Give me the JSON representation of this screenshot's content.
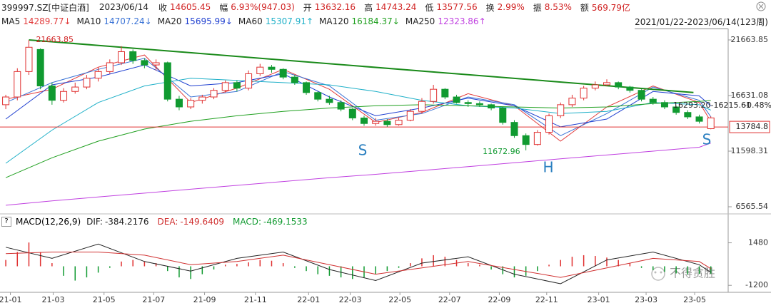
{
  "chart_data": {
    "type": "candlestick",
    "symbol": "399997.SZ[中证白酒]",
    "date": "2023/06/14",
    "quote": [
      {
        "label": "收",
        "value": 14605.45
      },
      {
        "label": "幅",
        "value": "6.93%(947.03)"
      },
      {
        "label": "开",
        "value": 13632.16
      },
      {
        "label": "高",
        "value": 14743.24
      },
      {
        "label": "低",
        "value": 13577.56
      },
      {
        "label": "换",
        "value": "2.99%"
      },
      {
        "label": "振",
        "value": "8.53%"
      },
      {
        "label": "额",
        "value": "569.79亿"
      }
    ],
    "range": "2021/01/22-2023/06/14(123周)",
    "open": [
      15800,
      16500,
      18800,
      20800,
      17500,
      16200,
      17000,
      17400,
      18200,
      18800,
      19600,
      20600,
      19800,
      19400,
      19600,
      16300,
      15600,
      16200,
      16500,
      17100,
      17800,
      17300,
      18600,
      19200,
      19000,
      18300,
      17800,
      16900,
      16300,
      16000,
      15400,
      14600,
      14100,
      14300,
      14000,
      14400,
      15200,
      16100,
      17200,
      16500,
      16000,
      15900,
      15800,
      15500,
      14200,
      13000,
      12200,
      13300,
      14800,
      15800,
      16400,
      17300,
      17600,
      17800,
      17400,
      17100,
      16300,
      16000,
      15600,
      15100,
      14700,
      13632.16
    ],
    "high": [
      16700,
      19100,
      21663.85,
      20900,
      17800,
      17300,
      17800,
      18500,
      19200,
      19900,
      21100,
      20800,
      20000,
      19900,
      19700,
      16600,
      16400,
      16700,
      17300,
      18000,
      18000,
      18900,
      19500,
      19400,
      19100,
      18500,
      17900,
      17000,
      16600,
      16200,
      15500,
      14800,
      14600,
      14500,
      14600,
      15400,
      16400,
      17600,
      17300,
      16700,
      16200,
      16100,
      15900,
      15600,
      14400,
      13200,
      13500,
      15000,
      16000,
      16700,
      17500,
      17900,
      18100,
      17900,
      17500,
      17200,
      16500,
      16200,
      15700,
      15300,
      14900,
      14743.24
    ],
    "low": [
      15400,
      16200,
      18500,
      17200,
      15800,
      16000,
      16800,
      17200,
      17900,
      18600,
      19400,
      19500,
      19100,
      18900,
      16100,
      15300,
      15400,
      15900,
      16300,
      16900,
      17000,
      17100,
      18400,
      18700,
      18100,
      17600,
      16700,
      16100,
      15800,
      15200,
      14400,
      13900,
      13900,
      13800,
      13900,
      14300,
      15000,
      15900,
      16300,
      15900,
      15600,
      15600,
      15300,
      14000,
      12800,
      11672.96,
      12100,
      13100,
      14600,
      15600,
      16200,
      17100,
      17500,
      17200,
      16900,
      16100,
      15800,
      15400,
      14900,
      14500,
      14100,
      13577.56
    ],
    "close": [
      16500,
      18800,
      21000,
      17500,
      16200,
      17000,
      17400,
      18200,
      18800,
      19600,
      20600,
      19800,
      19400,
      19600,
      16300,
      15600,
      16200,
      16500,
      17100,
      17800,
      17300,
      18600,
      19200,
      19000,
      18300,
      17800,
      16900,
      16300,
      16000,
      15400,
      14600,
      14100,
      14300,
      14000,
      14400,
      15200,
      16100,
      17200,
      16500,
      16000,
      15900,
      15800,
      15500,
      14200,
      13000,
      12200,
      13300,
      14800,
      15800,
      16400,
      17300,
      17600,
      17800,
      17400,
      17100,
      16300,
      16000,
      15600,
      15100,
      14700,
      14300,
      14605.45
    ],
    "up_color": "#e03030",
    "down_color": "#109a30",
    "xlim": [
      -0.5,
      62.5
    ],
    "xticks": [
      {
        "value": 0.4,
        "label": "21-01"
      },
      {
        "value": 4.1,
        "label": "21-03"
      },
      {
        "value": 8.5,
        "label": "21-05"
      },
      {
        "value": 12.8,
        "label": "21-07"
      },
      {
        "value": 17.2,
        "label": "21-09"
      },
      {
        "value": 21.6,
        "label": "21-11"
      },
      {
        "value": 26.2,
        "label": "22-01"
      },
      {
        "value": 29.8,
        "label": "22-03"
      },
      {
        "value": 34.1,
        "label": "22-05"
      },
      {
        "value": 38.4,
        "label": "22-07"
      },
      {
        "value": 42.7,
        "label": "22-09"
      },
      {
        "value": 46.8,
        "label": "22-11"
      },
      {
        "value": 51.3,
        "label": "23-01"
      },
      {
        "value": 55.4,
        "label": "23-03"
      },
      {
        "value": 59.6,
        "label": "23-05"
      }
    ],
    "ylim": [
      6178,
      22696
    ],
    "yticks": [
      21663.85,
      16631.08,
      11598.31,
      6565.54
    ],
    "ma_x": [
      0,
      4,
      8,
      12,
      16,
      20,
      24,
      28,
      32,
      36,
      40,
      44,
      48,
      52,
      56,
      60,
      61
    ],
    "series": [
      {
        "name": "MA5",
        "color": "#e23b3b",
        "trend": "↓",
        "values": [
          16300,
          17200,
          19200,
          20300,
          16000,
          17300,
          19000,
          17200,
          14200,
          15100,
          16800,
          15700,
          12500,
          15600,
          17500,
          16000,
          14289.77
        ]
      },
      {
        "name": "MA10",
        "color": "#3a73d6",
        "trend": "↓",
        "values": [
          16000,
          17800,
          19000,
          20000,
          16500,
          17000,
          18800,
          17500,
          14400,
          15000,
          16500,
          15800,
          13000,
          15000,
          17400,
          16200,
          14707.24
        ]
      },
      {
        "name": "MA20",
        "color": "#2040d0",
        "trend": "↓",
        "values": [
          14500,
          17600,
          18300,
          19400,
          17500,
          17800,
          18600,
          16500,
          14800,
          15500,
          16400,
          15700,
          13800,
          14500,
          17000,
          16600,
          15695.99
        ]
      },
      {
        "name": "MA60",
        "color": "#1fb0c8",
        "trend": "↑",
        "values": [
          10500,
          13500,
          16000,
          17500,
          18200,
          18000,
          17800,
          17600,
          17000,
          16200,
          15700,
          15500,
          15000,
          15200,
          16000,
          15800,
          15307.91
        ]
      },
      {
        "name": "MA120",
        "color": "#20a020",
        "trend": "↓",
        "values": [
          9200,
          11000,
          12500,
          13600,
          14300,
          14800,
          15200,
          15500,
          15700,
          15800,
          15700,
          15600,
          15500,
          15600,
          15900,
          16100,
          16184.37
        ]
      },
      {
        "name": "MA250",
        "color": "#c040e0",
        "trend": "↑",
        "values": [
          6700,
          7100,
          7450,
          7800,
          8150,
          8500,
          8850,
          9200,
          9500,
          9850,
          10200,
          10550,
          10900,
          11250,
          11600,
          11950,
          12323.86
        ]
      }
    ],
    "trendline": {
      "color": "#1a8a1a",
      "x": [
        2,
        59.5
      ],
      "values": [
        21663.85,
        16900
      ]
    },
    "range_annotation": "16293.20-16215.61",
    "range_change": "-0.48%",
    "price_line": 13784.8,
    "price_line_color": "#e03030",
    "pattern_labels": [
      "S",
      "H",
      "S"
    ],
    "macd": {
      "help": "?",
      "title": "MACD(12,26,9)",
      "ylim": [
        -1640,
        2314
      ],
      "yticks": [
        1480,
        -1200
      ],
      "x": [
        0,
        4,
        8,
        12,
        16,
        20,
        24,
        28,
        32,
        36,
        40,
        44,
        48,
        52,
        56,
        60,
        61
      ],
      "lines": [
        {
          "name": "DIF:",
          "color": "#222222",
          "values": [
            1200,
            500,
            1400,
            300,
            -300,
            500,
            900,
            -200,
            -900,
            200,
            600,
            -500,
            -1100,
            400,
            900,
            100,
            -384.2176
          ]
        },
        {
          "name": "DEA:",
          "color": "#d03030",
          "values": [
            800,
            900,
            900,
            700,
            100,
            300,
            700,
            100,
            -500,
            -100,
            300,
            -200,
            -700,
            -100,
            500,
            300,
            -149.6409
          ]
        }
      ],
      "histogram": {
        "name": "MACD:",
        "values": [
          400,
          900,
          1500,
          900,
          200,
          -600,
          -900,
          -700,
          -400,
          -100,
          300,
          400,
          300,
          200,
          -300,
          -700,
          -800,
          -500,
          -200,
          100,
          150,
          250,
          400,
          350,
          200,
          -100,
          -300,
          -500,
          -600,
          -700,
          -800,
          -700,
          -500,
          -300,
          -100,
          200,
          500,
          700,
          600,
          400,
          200,
          100,
          -200,
          -500,
          -700,
          -600,
          -300,
          100,
          400,
          600,
          700,
          650,
          550,
          400,
          200,
          -100,
          -250,
          -350,
          -450,
          -500,
          -480,
          -469.1533
        ]
      }
    },
    "watermark": "不得贪胜"
  }
}
